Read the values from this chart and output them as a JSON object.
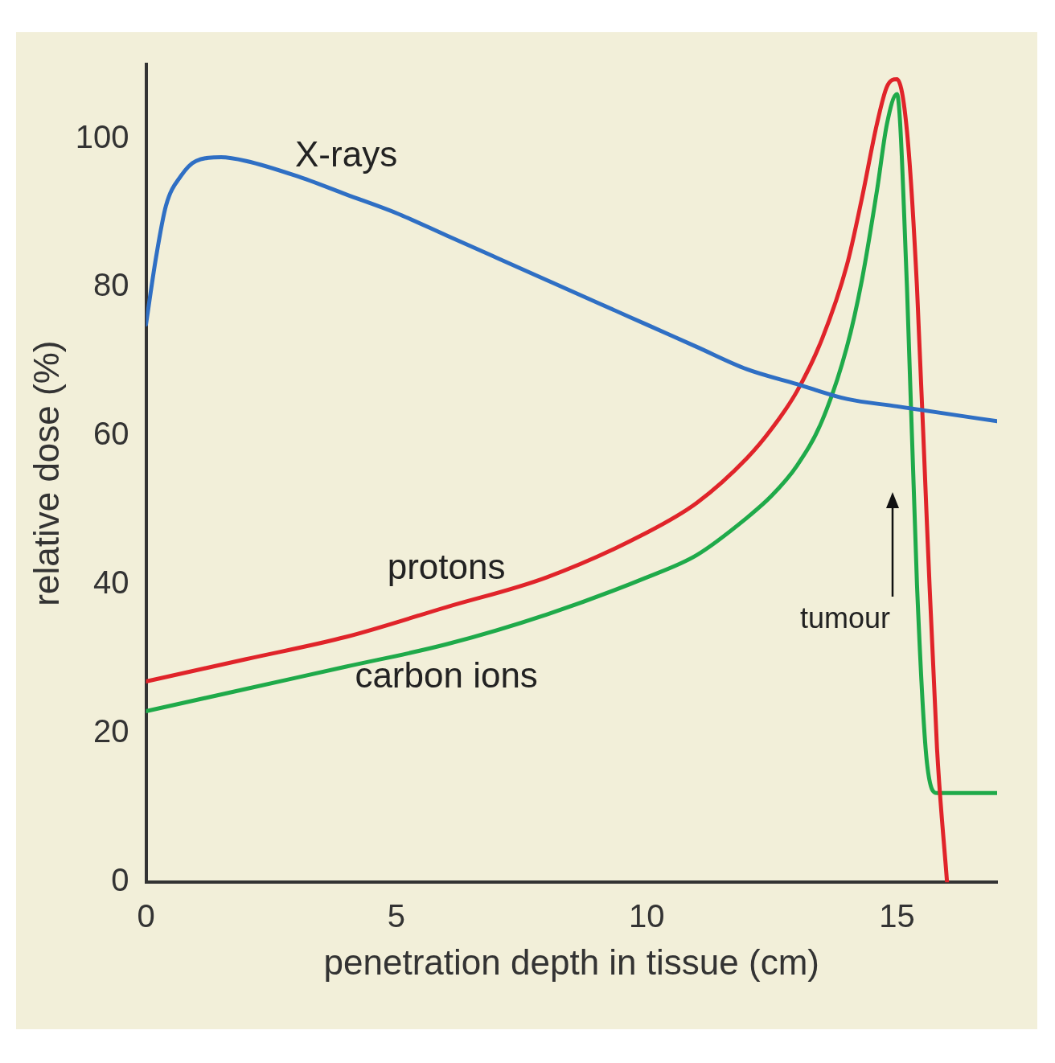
{
  "chart_data": {
    "type": "line",
    "xlabel": "penetration depth in tissue (cm)",
    "ylabel": "relative dose (%)",
    "xlim": [
      0,
      17
    ],
    "ylim": [
      0,
      110
    ],
    "xticks": [
      0,
      5,
      10,
      15
    ],
    "yticks": [
      0,
      20,
      40,
      60,
      80,
      100
    ],
    "grid": false,
    "legend": false,
    "marker": "none",
    "line_style": "solid",
    "annotations": [
      "tumour"
    ],
    "series": [
      {
        "name": "X-rays",
        "color": "#2f6fc4",
        "x": [
          0,
          0.2,
          0.4,
          0.7,
          1.0,
          1.5,
          2,
          3,
          4,
          5,
          6,
          7,
          8,
          9,
          10,
          11,
          12,
          13,
          14,
          15,
          16,
          17
        ],
        "values": [
          75,
          84,
          91,
          95,
          97,
          97.5,
          97,
          95,
          92.5,
          90,
          87,
          84,
          81,
          78,
          75,
          72,
          69,
          67,
          65,
          64,
          63,
          62
        ]
      },
      {
        "name": "protons",
        "color": "#e0242a",
        "x": [
          0,
          2,
          4,
          6,
          8,
          10,
          11,
          12,
          12.5,
          13,
          13.5,
          14,
          14.3,
          14.6,
          14.8,
          15,
          15.2,
          15.4,
          15.6,
          15.8,
          16
        ],
        "values": [
          27,
          30,
          33,
          37,
          41,
          47,
          51,
          57,
          61,
          66,
          73,
          83,
          92,
          102,
          107,
          108,
          101,
          80,
          48,
          18,
          0
        ]
      },
      {
        "name": "carbon ions",
        "color": "#1faa4a",
        "x": [
          0,
          2,
          4,
          6,
          8,
          10,
          11,
          12,
          12.5,
          13,
          13.5,
          14,
          14.3,
          14.6,
          14.8,
          15,
          15.2,
          15.4,
          15.6,
          15.8,
          16,
          17
        ],
        "values": [
          23,
          26,
          29,
          32,
          36,
          41,
          44,
          49,
          52,
          56,
          62,
          72,
          81,
          93,
          102,
          106,
          80,
          40,
          16,
          12,
          12,
          12
        ]
      }
    ]
  }
}
